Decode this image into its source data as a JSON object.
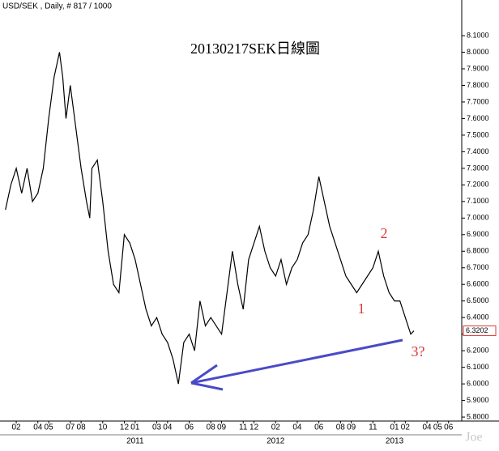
{
  "chart_data": {
    "type": "line",
    "header": "USD/SEK , Daily, # 817 / 1000",
    "title": "20130217SEK日線圖",
    "annotations": [
      "1",
      "2",
      "3?"
    ],
    "watermark": "Joe",
    "last_price": 6.3202,
    "x": [
      0,
      0.5,
      1,
      1.5,
      2,
      2.5,
      3,
      3.5,
      4,
      4.5,
      5,
      5.3,
      5.6,
      6,
      6.5,
      7,
      7.5,
      7.8,
      8,
      8.5,
      9,
      9.5,
      10,
      10.5,
      11,
      11.5,
      12,
      12.5,
      13,
      13.5,
      14,
      14.5,
      15,
      15.5,
      16,
      16.5,
      17,
      17.5,
      18,
      18.5,
      19,
      19.5,
      20,
      20.5,
      21,
      21.5,
      22,
      22.5,
      23,
      23.5,
      24,
      24.5,
      25,
      25.5,
      26,
      26.5,
      27,
      27.5,
      28,
      28.5,
      29,
      29.5,
      30,
      30.5,
      31,
      31.5,
      32,
      32.5,
      33,
      33.5,
      34,
      34.5,
      35,
      35.5,
      36,
      36.5,
      37,
      37.5,
      37.8
    ],
    "series": [
      {
        "name": "USD/SEK",
        "color": "#000000",
        "values": [
          7.05,
          7.2,
          7.3,
          7.15,
          7.3,
          7.1,
          7.15,
          7.3,
          7.6,
          7.85,
          8.0,
          7.85,
          7.6,
          7.8,
          7.55,
          7.3,
          7.1,
          7.0,
          7.3,
          7.35,
          7.1,
          6.8,
          6.6,
          6.55,
          6.9,
          6.85,
          6.75,
          6.6,
          6.45,
          6.35,
          6.4,
          6.3,
          6.25,
          6.15,
          6.0,
          6.25,
          6.3,
          6.2,
          6.5,
          6.35,
          6.4,
          6.35,
          6.3,
          6.55,
          6.8,
          6.6,
          6.45,
          6.75,
          6.85,
          6.95,
          6.8,
          6.7,
          6.65,
          6.75,
          6.6,
          6.7,
          6.75,
          6.85,
          6.9,
          7.05,
          7.25,
          7.1,
          6.95,
          6.85,
          6.75,
          6.65,
          6.6,
          6.55,
          6.6,
          6.65,
          6.7,
          6.8,
          6.65,
          6.55,
          6.5,
          6.5,
          6.4,
          6.3,
          6.32
        ]
      }
    ],
    "xlim": [
      -0.13,
      42.22
    ],
    "xticks": [
      {
        "value": 1,
        "label": "02"
      },
      {
        "value": 3,
        "label": "04"
      },
      {
        "value": 4,
        "label": "05"
      },
      {
        "value": 6,
        "label": "07"
      },
      {
        "value": 7,
        "label": "08"
      },
      {
        "value": 9,
        "label": "10"
      },
      {
        "value": 11,
        "label": "12"
      },
      {
        "value": 12,
        "label": "01"
      },
      {
        "value": 14,
        "label": "03"
      },
      {
        "value": 15,
        "label": "04"
      },
      {
        "value": 17,
        "label": "06"
      },
      {
        "value": 19,
        "label": "08"
      },
      {
        "value": 20,
        "label": "09"
      },
      {
        "value": 22,
        "label": "11"
      },
      {
        "value": 23,
        "label": "12"
      },
      {
        "value": 25,
        "label": "02"
      },
      {
        "value": 27,
        "label": "04"
      },
      {
        "value": 29,
        "label": "06"
      },
      {
        "value": 31,
        "label": "08"
      },
      {
        "value": 32,
        "label": "09"
      },
      {
        "value": 34,
        "label": "11"
      },
      {
        "value": 36,
        "label": "01"
      },
      {
        "value": 37,
        "label": "02"
      },
      {
        "value": 39,
        "label": "04"
      },
      {
        "value": 40,
        "label": "05"
      },
      {
        "value": 41,
        "label": "06"
      }
    ],
    "year_ticks": [
      {
        "value": 12,
        "label": "2011"
      },
      {
        "value": 25,
        "label": "2012"
      },
      {
        "value": 36,
        "label": "2013"
      }
    ],
    "ylim": [
      5.776,
      8.315
    ],
    "yticks": [
      {
        "value": 5.8,
        "label": "5.8000"
      },
      {
        "value": 5.9,
        "label": "5.9000"
      },
      {
        "value": 6.0,
        "label": "6.0000"
      },
      {
        "value": 6.1,
        "label": "6.1000"
      },
      {
        "value": 6.2,
        "label": "6.2000"
      },
      {
        "value": 6.3,
        "label": "6.3000"
      },
      {
        "value": 6.4,
        "label": "6.4000"
      },
      {
        "value": 6.5,
        "label": "6.5000"
      },
      {
        "value": 6.6,
        "label": "6.6000"
      },
      {
        "value": 6.7,
        "label": "6.7000"
      },
      {
        "value": 6.8,
        "label": "6.8000"
      },
      {
        "value": 6.9,
        "label": "6.9000"
      },
      {
        "value": 7.0,
        "label": "7.0000"
      },
      {
        "value": 7.1,
        "label": "7.1000"
      },
      {
        "value": 7.2,
        "label": "7.2000"
      },
      {
        "value": 7.3,
        "label": "7.3000"
      },
      {
        "value": 7.4,
        "label": "7.4000"
      },
      {
        "value": 7.5,
        "label": "7.5000"
      },
      {
        "value": 7.6,
        "label": "7.6000"
      },
      {
        "value": 7.7,
        "label": "7.7000"
      },
      {
        "value": 7.8,
        "label": "7.8000"
      },
      {
        "value": 7.9,
        "label": "7.9000"
      },
      {
        "value": 8.0,
        "label": "8.0000"
      },
      {
        "value": 8.1,
        "label": "8.1000"
      }
    ]
  }
}
